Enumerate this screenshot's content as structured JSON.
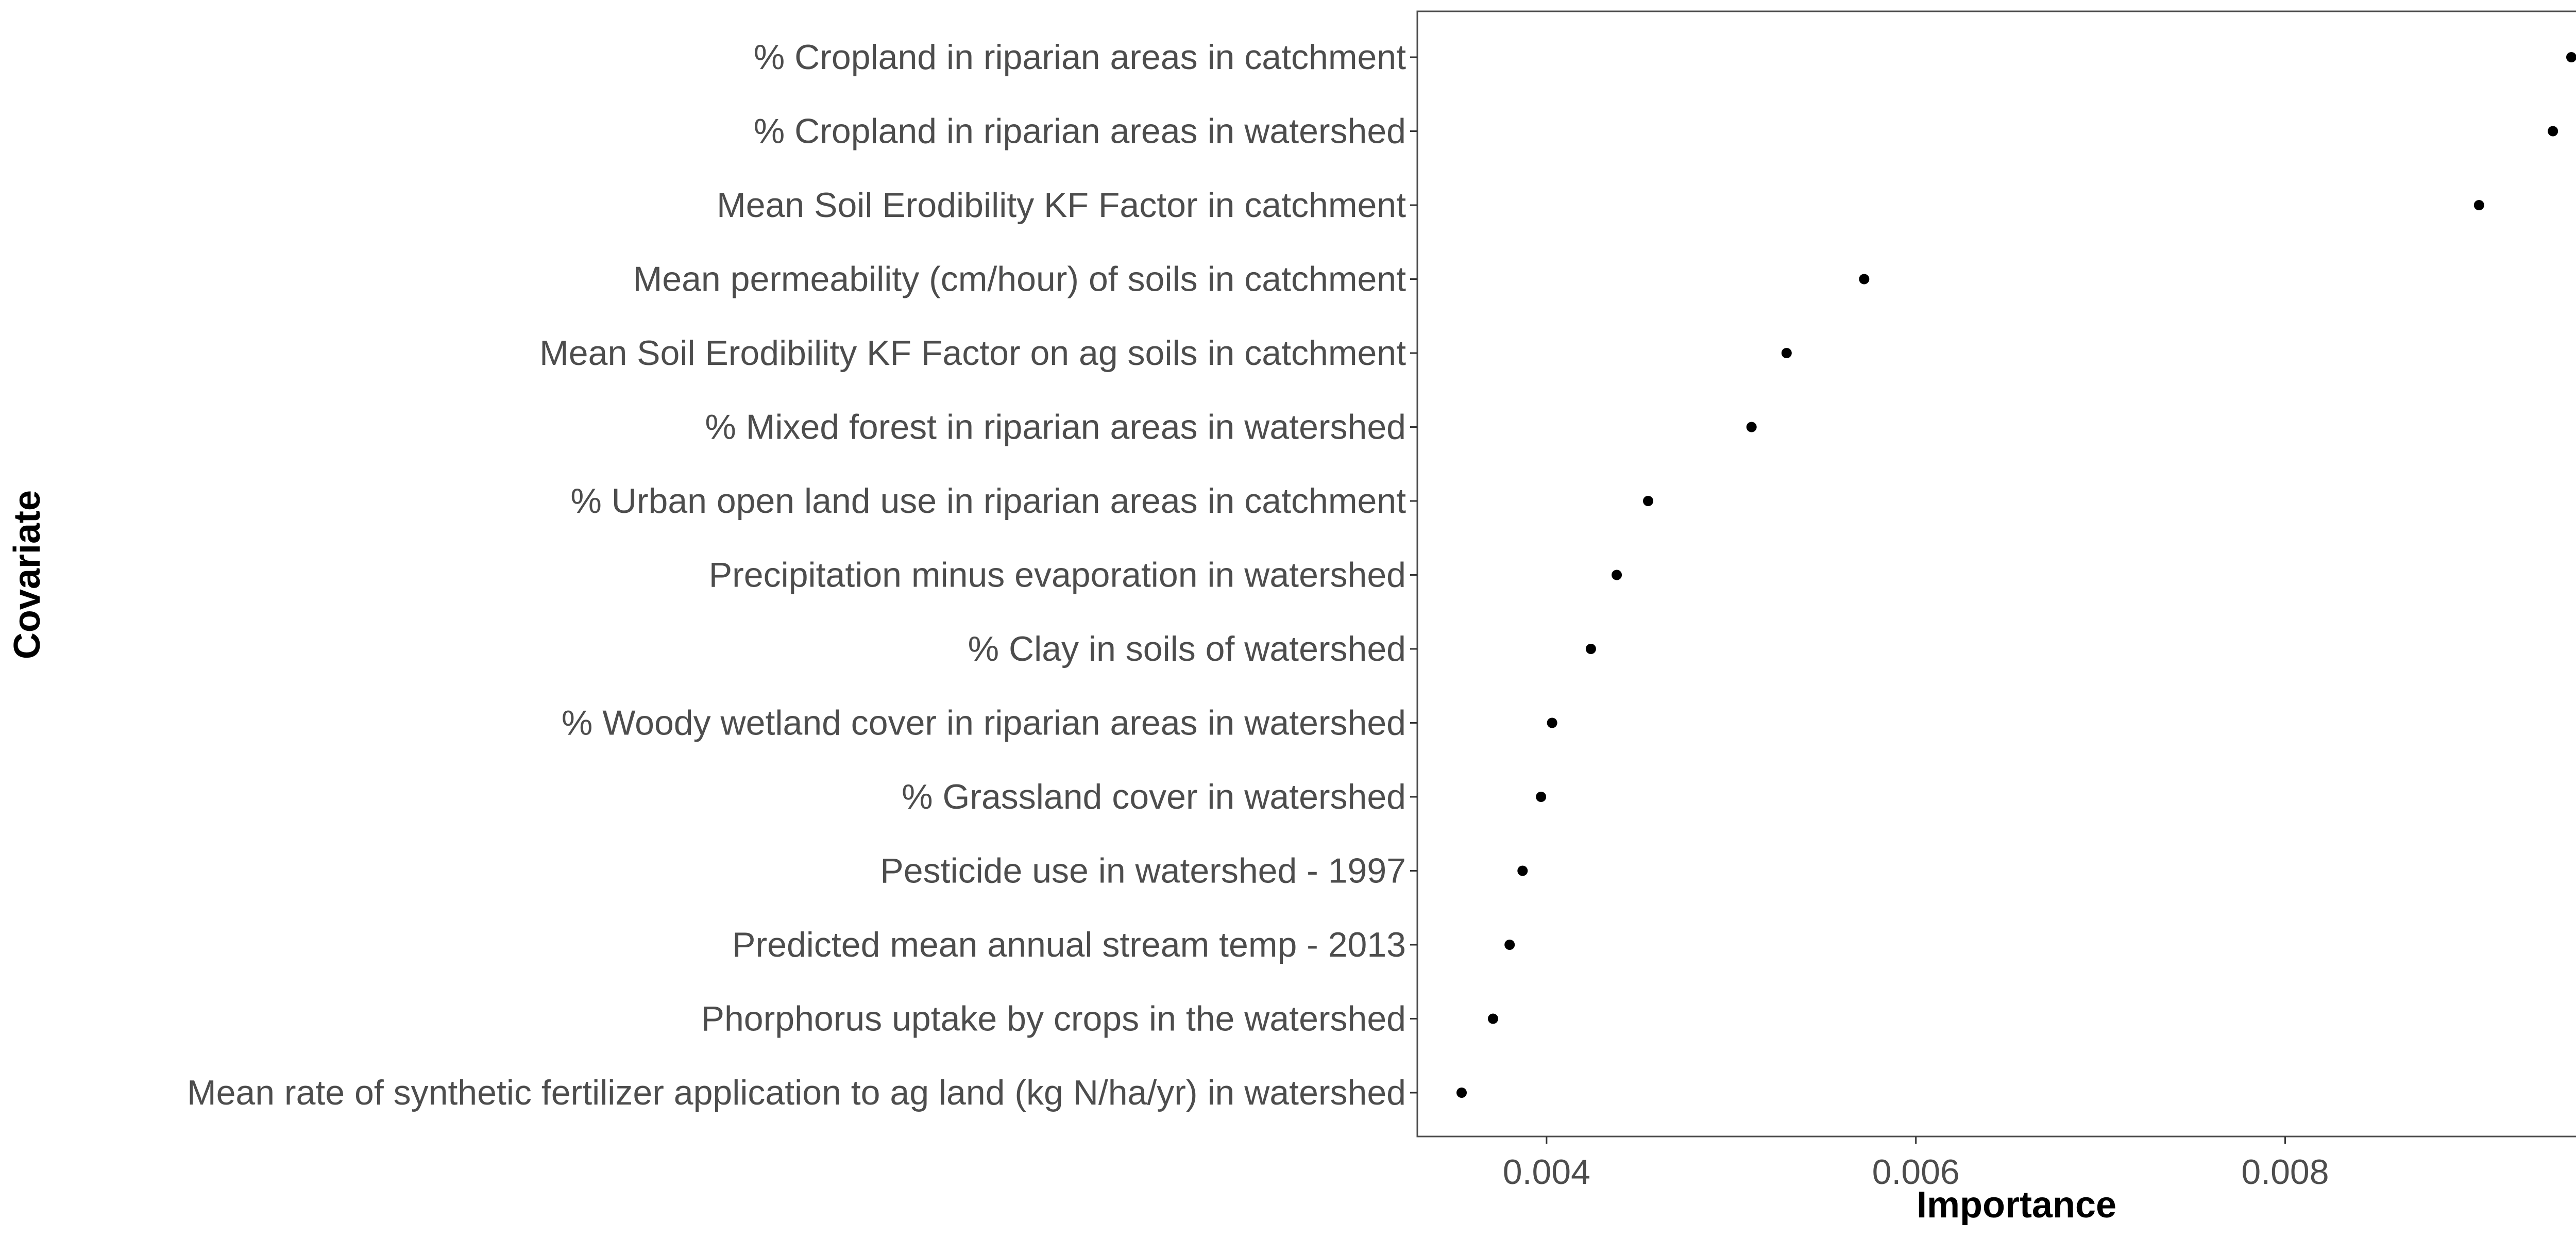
{
  "chart_data": {
    "type": "scatter",
    "title": "",
    "xlabel": "Importance",
    "ylabel": "Covariate",
    "xlim": [
      0.0033,
      0.00979
    ],
    "xticks": [
      0.004,
      0.006,
      0.008
    ],
    "xtick_labels": [
      "0.004",
      "0.006",
      "0.008"
    ],
    "grid": false,
    "legend": "none",
    "point_color": "#000000",
    "categories": [
      "% Cropland in riparian areas in catchment",
      "% Cropland in riparian areas in watershed",
      "Mean Soil Erodibility KF Factor in catchment",
      "Mean permeability (cm/hour) of soils in catchment",
      "Mean Soil Erodibility KF Factor on ag soils in catchment",
      "% Mixed forest in riparian areas in watershed",
      "% Urban open land use in riparian areas in catchment",
      "Precipitation minus evaporation in watershed",
      "% Clay in soils of watershed",
      "% Woody wetland cover in riparian areas in watershed",
      "% Grassland cover in watershed",
      "Pesticide use in watershed - 1997",
      "Predicted mean annual stream temp - 2013",
      "Phorphorus uptake by crops in the watershed",
      "Mean rate of synthetic fertilizer application to ag land (kg N/ha/yr) in watershed"
    ],
    "values": [
      0.00955,
      0.00945,
      0.00905,
      0.00572,
      0.0053,
      0.00511,
      0.00455,
      0.00438,
      0.00424,
      0.00403,
      0.00397,
      0.00387,
      0.0038,
      0.00371,
      0.00354
    ]
  }
}
